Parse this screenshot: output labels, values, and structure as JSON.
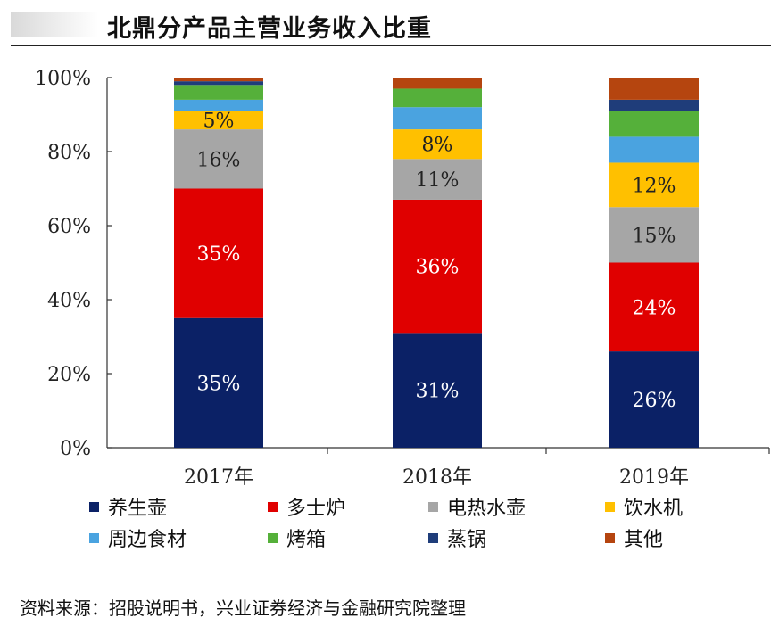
{
  "header": {
    "title": "北鼎分产品主营业务收入比重"
  },
  "chart_data": {
    "type": "bar",
    "stacked": true,
    "title": "北鼎分产品主营业务收入比重",
    "categories": [
      "2017年",
      "2018年",
      "2019年"
    ],
    "ylim": [
      0,
      100
    ],
    "yticks": [
      "0%",
      "20%",
      "40%",
      "60%",
      "80%",
      "100%"
    ],
    "ytick_values": [
      0,
      20,
      40,
      60,
      80,
      100
    ],
    "legend_position": "bottom",
    "series": [
      {
        "name": "养生壶",
        "color": "#0b2166",
        "values": [
          35,
          31,
          26
        ],
        "labels": [
          "35%",
          "31%",
          "26%"
        ],
        "label_color": "#ffffff"
      },
      {
        "name": "多士炉",
        "color": "#e00000",
        "values": [
          35,
          36,
          24
        ],
        "labels": [
          "35%",
          "36%",
          "24%"
        ],
        "label_color": "#ffffff"
      },
      {
        "name": "电热水壶",
        "color": "#a6a6a6",
        "values": [
          16,
          11,
          15
        ],
        "labels": [
          "16%",
          "11%",
          "15%"
        ],
        "label_color": "#222222"
      },
      {
        "name": "饮水机",
        "color": "#ffc000",
        "values": [
          5,
          8,
          12
        ],
        "labels": [
          "5%",
          "8%",
          "12%"
        ],
        "label_color": "#222222"
      },
      {
        "name": "周边食材",
        "color": "#4aa3e0",
        "values": [
          3,
          6,
          7
        ],
        "labels": [
          "",
          "",
          ""
        ],
        "label_color": "#222222"
      },
      {
        "name": "烤箱",
        "color": "#55b03a",
        "values": [
          4,
          5,
          7
        ],
        "labels": [
          "",
          "",
          ""
        ],
        "label_color": "#222222"
      },
      {
        "name": "蒸锅",
        "color": "#1f3d7a",
        "values": [
          1,
          0,
          3
        ],
        "labels": [
          "",
          "",
          ""
        ],
        "label_color": "#ffffff"
      },
      {
        "name": "其他",
        "color": "#b5450f",
        "values": [
          1,
          3,
          6
        ],
        "labels": [
          "",
          "",
          ""
        ],
        "label_color": "#ffffff"
      }
    ]
  },
  "footer": {
    "source": "资料来源：招股说明书，兴业证券经济与金融研究院整理"
  }
}
